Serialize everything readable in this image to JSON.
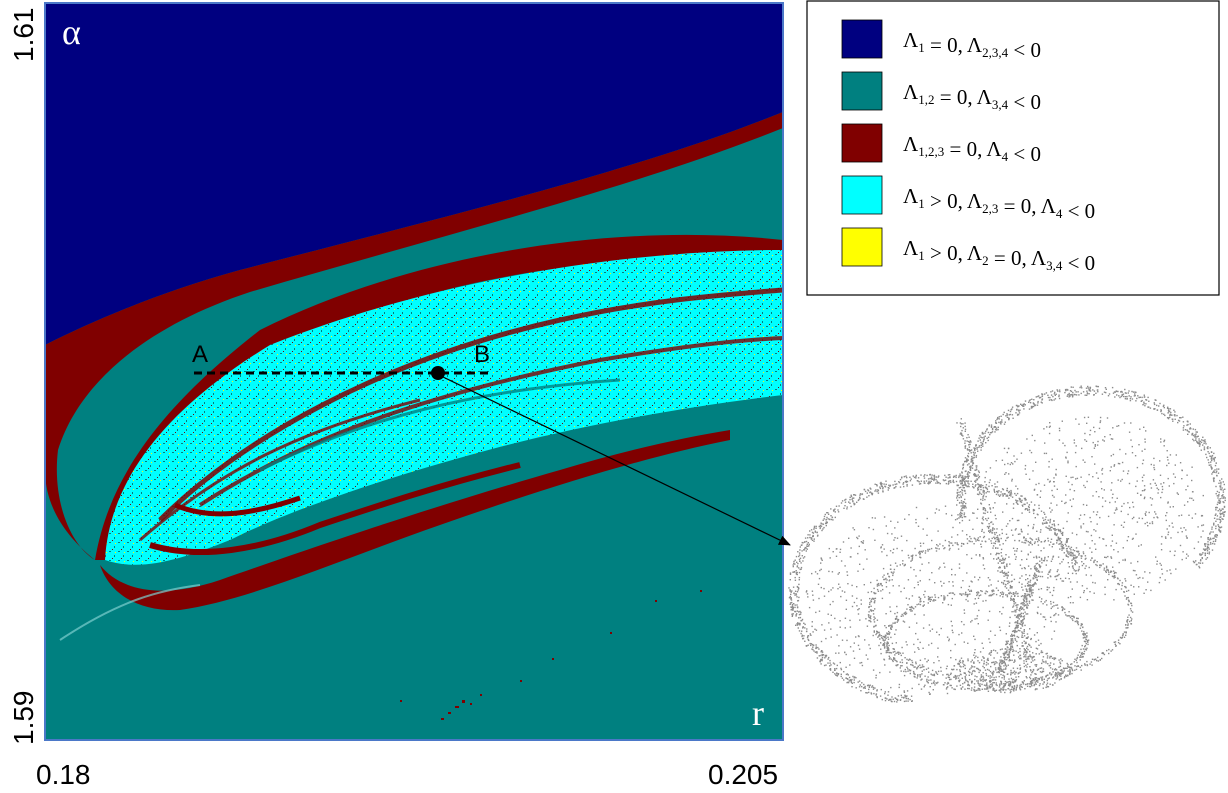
{
  "plot": {
    "y_label": "α",
    "x_label": "r",
    "y_max_label": "1.61",
    "y_min_label": "1.59",
    "x_min_label": "0.18",
    "x_max_label": "0.205",
    "x_range": [
      0.18,
      0.205
    ],
    "y_range": [
      1.59,
      1.61
    ],
    "point_a_label": "A",
    "point_b_label": "B"
  },
  "colors": {
    "dark_blue": "#000080",
    "teal": "#008080",
    "dark_red": "#800000",
    "cyan": "#00ffff",
    "yellow": "#ffff00",
    "attractor_gray": "#8c8c8c"
  },
  "legend": [
    {
      "color": "#000080",
      "parts": [
        [
          "Λ",
          ""
        ],
        [
          "",
          "1"
        ],
        [
          " = 0, Λ",
          ""
        ],
        [
          "",
          "2,3,4"
        ],
        [
          " < 0",
          ""
        ]
      ]
    },
    {
      "color": "#008080",
      "parts": [
        [
          "Λ",
          ""
        ],
        [
          "",
          "1,2"
        ],
        [
          " = 0, Λ",
          ""
        ],
        [
          "",
          "3,4"
        ],
        [
          " < 0",
          ""
        ]
      ]
    },
    {
      "color": "#800000",
      "parts": [
        [
          "Λ",
          ""
        ],
        [
          "",
          "1,2,3"
        ],
        [
          " = 0, Λ",
          ""
        ],
        [
          "",
          "4"
        ],
        [
          " < 0",
          ""
        ]
      ]
    },
    {
      "color": "#00ffff",
      "parts": [
        [
          "Λ",
          ""
        ],
        [
          "",
          "1"
        ],
        [
          " > 0, Λ",
          ""
        ],
        [
          "",
          "2,3"
        ],
        [
          " = 0, Λ",
          ""
        ],
        [
          "",
          "4"
        ],
        [
          " < 0",
          ""
        ]
      ]
    },
    {
      "color": "#ffff00",
      "parts": [
        [
          "Λ",
          ""
        ],
        [
          "",
          "1"
        ],
        [
          " > 0, Λ",
          ""
        ],
        [
          "",
          "2"
        ],
        [
          " = 0, Λ",
          ""
        ],
        [
          "",
          "3,4"
        ],
        [
          " < 0",
          ""
        ]
      ]
    }
  ]
}
